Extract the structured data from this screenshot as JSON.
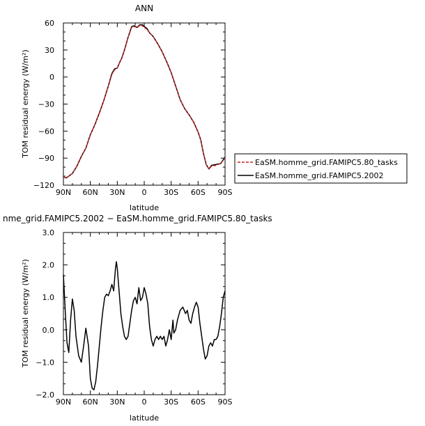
{
  "chart_data": [
    {
      "type": "line",
      "title": "ANN",
      "xlabel": "latitude",
      "ylabel": "TOM residual energy  (W/m²)",
      "xticks": [
        "90N",
        "60N",
        "30N",
        "0",
        "30S",
        "60S",
        "90S"
      ],
      "yticks": [
        "60",
        "30",
        "0",
        "−30",
        "−60",
        "−90",
        "−120"
      ],
      "xlim": [
        90,
        -90
      ],
      "ylim": [
        -120,
        60
      ],
      "grid": false,
      "legend_position": "right",
      "series": [
        {
          "name": "EaSM.homme_grid.FAMIPC5.80_tasks",
          "color": "#cc2222",
          "dash": true,
          "x": [
            90,
            87,
            84,
            80,
            75,
            70,
            65,
            60,
            55,
            50,
            45,
            40,
            36,
            33,
            30,
            27,
            25,
            22,
            18,
            14,
            11,
            8,
            5,
            2,
            0,
            -3,
            -6,
            -10,
            -15,
            -20,
            -25,
            -30,
            -35,
            -40,
            -45,
            -50,
            -55,
            -60,
            -63,
            -66,
            -69,
            -72,
            -75,
            -80,
            -85,
            -90
          ],
          "y": [
            -111,
            -112,
            -110,
            -107,
            -99,
            -88,
            -79,
            -64,
            -53,
            -40,
            -26,
            -10,
            3,
            8,
            10,
            17,
            21,
            30,
            44,
            55,
            56,
            55,
            57,
            57,
            55,
            53,
            49,
            45,
            37,
            28,
            17,
            5,
            -10,
            -25,
            -35,
            -42,
            -50,
            -61,
            -70,
            -85,
            -97,
            -102,
            -99,
            -98,
            -96,
            -90
          ]
        },
        {
          "name": "EaSM.homme_grid.FAMIPC5.2002",
          "color": "#000000",
          "dash": false,
          "x": [
            90,
            87,
            84,
            80,
            75,
            70,
            65,
            60,
            55,
            50,
            45,
            40,
            36,
            33,
            30,
            27,
            25,
            22,
            18,
            14,
            11,
            8,
            5,
            2,
            0,
            -3,
            -6,
            -10,
            -15,
            -20,
            -25,
            -30,
            -35,
            -40,
            -45,
            -50,
            -55,
            -60,
            -63,
            -66,
            -69,
            -72,
            -75,
            -80,
            -85,
            -90
          ],
          "y": [
            -111,
            -112,
            -110,
            -107,
            -99,
            -88,
            -79,
            -64,
            -53,
            -40,
            -26,
            -10,
            4,
            9,
            10,
            17,
            21,
            30,
            44,
            56,
            57,
            55,
            58,
            58,
            56,
            54,
            49,
            45,
            37,
            28,
            17,
            5,
            -10,
            -25,
            -35,
            -42,
            -50,
            -61,
            -70,
            -85,
            -97,
            -102,
            -98,
            -97,
            -96,
            -89
          ]
        }
      ]
    },
    {
      "type": "line",
      "title": "nme_grid.FAMIPC5.2002 − EaSM.homme_grid.FAMIPC5.80_tasks",
      "xlabel": "latitude",
      "ylabel": "TOM residual energy  (W/m²)",
      "xticks": [
        "90N",
        "60N",
        "30N",
        "0",
        "30S",
        "60S",
        "90S"
      ],
      "yticks": [
        "3.0",
        "2.0",
        "1.0",
        "0.0",
        "−1.0",
        "−2.0"
      ],
      "xlim": [
        90,
        -90
      ],
      "ylim": [
        -2.0,
        3.0
      ],
      "grid": false,
      "series": [
        {
          "name": "",
          "color": "#000000",
          "x": [
            90,
            88,
            86,
            84,
            82,
            80,
            78,
            76,
            73,
            70,
            67,
            65,
            62,
            60,
            58,
            56,
            54,
            52,
            50,
            48,
            46,
            44,
            42,
            40,
            38,
            36,
            34,
            32,
            31,
            30,
            28,
            26,
            24,
            22,
            20,
            18,
            16,
            14,
            12,
            10,
            8,
            6,
            4,
            2,
            0,
            -2,
            -4,
            -6,
            -8,
            -10,
            -12,
            -14,
            -16,
            -18,
            -20,
            -22,
            -24,
            -26,
            -28,
            -30,
            -32,
            -33,
            -35,
            -37,
            -40,
            -43,
            -46,
            -48,
            -50,
            -52,
            -54,
            -56,
            -58,
            -60,
            -62,
            -64,
            -66,
            -68,
            -70,
            -72,
            -74,
            -76,
            -78,
            -80,
            -82,
            -84,
            -86,
            -88,
            -90
          ],
          "y": [
            1.7,
            0.6,
            -0.4,
            -0.7,
            0.3,
            0.95,
            0.6,
            -0.2,
            -0.8,
            -1.0,
            -0.4,
            0.05,
            -0.5,
            -1.5,
            -1.8,
            -1.85,
            -1.6,
            -1.1,
            -0.5,
            0.1,
            0.6,
            1.0,
            1.1,
            1.05,
            1.2,
            1.4,
            1.2,
            1.9,
            2.1,
            1.9,
            1.2,
            0.5,
            0.1,
            -0.2,
            -0.3,
            -0.2,
            0.2,
            0.6,
            0.9,
            1.0,
            0.8,
            1.3,
            0.9,
            1.0,
            1.3,
            1.1,
            0.8,
            0.1,
            -0.3,
            -0.5,
            -0.3,
            -0.2,
            -0.3,
            -0.2,
            -0.3,
            -0.2,
            -0.5,
            -0.3,
            0.0,
            -0.3,
            0.3,
            -0.1,
            0.0,
            0.3,
            0.6,
            0.7,
            0.5,
            0.6,
            0.3,
            0.2,
            0.5,
            0.7,
            0.85,
            0.7,
            0.2,
            -0.2,
            -0.6,
            -0.9,
            -0.8,
            -0.5,
            -0.4,
            -0.5,
            -0.3,
            -0.3,
            -0.2,
            0.1,
            0.5,
            1.0,
            1.2
          ]
        }
      ]
    }
  ]
}
